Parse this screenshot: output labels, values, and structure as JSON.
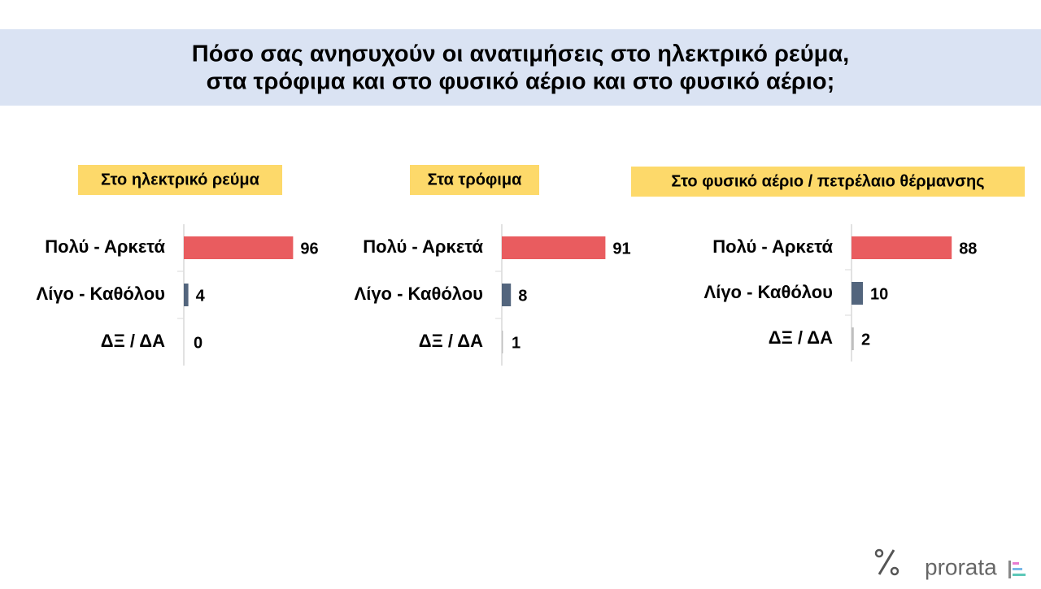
{
  "title": [
    "Πόσο σας ανησυχούν οι ανατιμήσεις στο ηλεκτρικό ρεύμα,",
    "στα τρόφιμα και στο φυσικό αέριο και στο φυσικό αέριο;"
  ],
  "brand": "prorata",
  "chart_data": [
    {
      "type": "bar",
      "title": "Στο ηλεκτρικό ρεύμα",
      "categories": [
        "Πολύ - Αρκετά",
        "Λίγο - Καθόλου",
        "ΔΞ / ΔΑ"
      ],
      "values": [
        96,
        4,
        0
      ],
      "colors": [
        "#e95c5f",
        "#53657d",
        "#bfbfbf"
      ]
    },
    {
      "type": "bar",
      "title": "Στα τρόφιμα",
      "categories": [
        "Πολύ - Αρκετά",
        "Λίγο - Καθόλου",
        "ΔΞ / ΔΑ"
      ],
      "values": [
        91,
        8,
        1
      ],
      "colors": [
        "#e95c5f",
        "#53657d",
        "#bfbfbf"
      ]
    },
    {
      "type": "bar",
      "title": "Στο φυσικό αέριο / πετρέλαιο θέρμανσης",
      "categories": [
        "Πολύ - Αρκετά",
        "Λίγο - Καθόλου",
        "ΔΞ / ΔΑ"
      ],
      "values": [
        88,
        10,
        2
      ],
      "colors": [
        "#e95c5f",
        "#53657d",
        "#bfbfbf"
      ]
    }
  ]
}
